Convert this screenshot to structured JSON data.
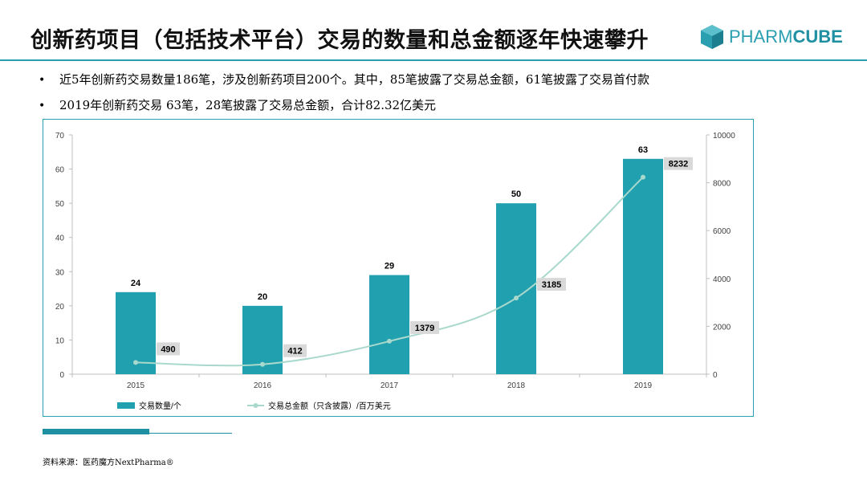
{
  "header": {
    "title": "创新药项目（包括技术平台）交易的数量和总金额逐年快速攀升",
    "logo_text_light": "PHARM",
    "logo_text_bold": "CUBE"
  },
  "bullets": [
    "近5年创新药交易数量186笔，涉及创新药项目200个。其中，85笔披露了交易总金额，61笔披露了交易首付款",
    "2019年创新药交易 63笔，28笔披露了交易总金额，合计82.32亿美元"
  ],
  "source": "资料来源：医药魔方NextPharma®",
  "colors": {
    "bar": "#21a0b0",
    "line": "#a9d8cc",
    "accent": "#2a9fb0"
  },
  "chart_data": {
    "type": "bar",
    "categories": [
      "2015",
      "2016",
      "2017",
      "2018",
      "2019"
    ],
    "series": [
      {
        "name": "交易数量/个",
        "type": "bar",
        "axis": "left",
        "values": [
          24,
          20,
          29,
          50,
          63
        ]
      },
      {
        "name": "交易总金额（只含披露）/百万美元",
        "type": "line",
        "axis": "right",
        "values": [
          490,
          412,
          1379,
          3185,
          8232
        ]
      }
    ],
    "y_left": {
      "min": 0,
      "max": 70,
      "ticks": [
        0,
        10,
        20,
        30,
        40,
        50,
        60,
        70
      ]
    },
    "y_right": {
      "min": 0,
      "max": 10000,
      "ticks": [
        0,
        2000,
        4000,
        6000,
        8000,
        10000
      ]
    },
    "grid": false,
    "legend": "bottom-left"
  }
}
